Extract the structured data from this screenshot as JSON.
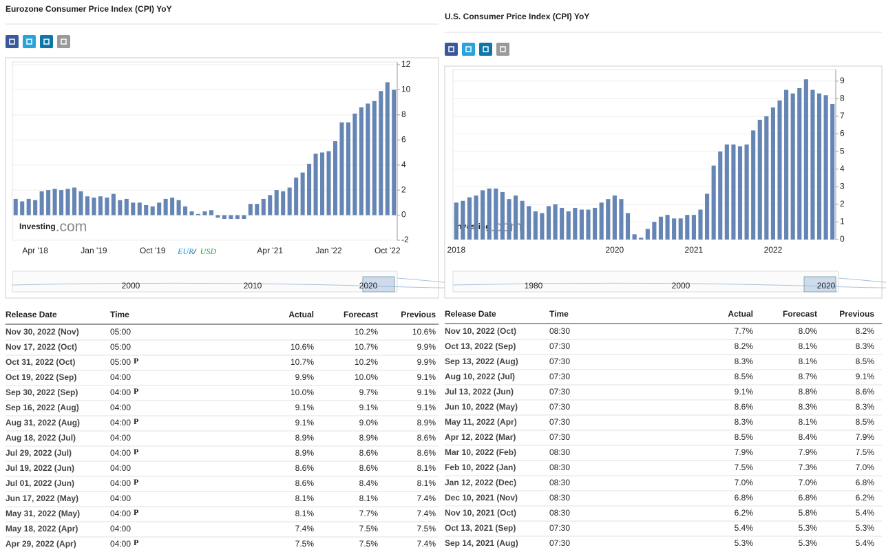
{
  "panels": [
    {
      "title": "Eurozone Consumer Price Index (CPI) YoY",
      "chart": {
        "type": "bar",
        "color": "#6585b4",
        "categories": [
          null,
          null,
          null,
          "Apr '18",
          null,
          null,
          null,
          null,
          null,
          null,
          null,
          null,
          "Jan '19",
          null,
          null,
          null,
          null,
          null,
          null,
          null,
          null,
          "Oct '19",
          null,
          null,
          null,
          null,
          null,
          null,
          null,
          null,
          null,
          null,
          null,
          null,
          null,
          null,
          null,
          null,
          null,
          "Apr '21",
          null,
          null,
          null,
          null,
          null,
          null,
          null,
          null,
          "Jan '22",
          null,
          null,
          null,
          null,
          null,
          null,
          null,
          null,
          "Oct '22",
          null
        ],
        "values": [
          1.3,
          1.1,
          1.3,
          1.2,
          1.9,
          2.0,
          2.1,
          2.0,
          2.1,
          2.2,
          1.9,
          1.5,
          1.4,
          1.5,
          1.4,
          1.7,
          1.2,
          1.3,
          1.0,
          1.0,
          0.8,
          0.7,
          1.0,
          1.3,
          1.4,
          1.2,
          0.7,
          0.3,
          0.1,
          0.3,
          0.4,
          -0.2,
          -0.3,
          -0.3,
          -0.3,
          -0.3,
          0.9,
          0.9,
          1.3,
          1.6,
          2.0,
          1.9,
          2.2,
          3.0,
          3.4,
          4.1,
          4.9,
          5.0,
          5.1,
          5.9,
          7.4,
          7.4,
          8.1,
          8.6,
          8.9,
          9.1,
          9.9,
          10.6,
          10.0
        ],
        "ylim": [
          -2,
          12
        ],
        "yticks": [
          -2,
          0,
          2,
          4,
          6,
          8,
          10,
          12
        ],
        "grid": true,
        "navigator_ticks": [
          2000,
          2010,
          2020
        ],
        "watermark": [
          "Investing",
          ".com"
        ]
      },
      "table": {
        "columns": [
          "Release Date",
          "Time",
          "Actual",
          "Forecast",
          "Previous"
        ],
        "preliminary_mark": "P",
        "rows": [
          {
            "date": "Nov 30, 2022 (Nov)",
            "time": "05:00",
            "actual": null,
            "forecast": "10.2%",
            "previous": "10.6%",
            "previous_color": "#1e9a1e"
          },
          {
            "date": "Nov 17, 2022 (Oct)",
            "time": "05:00",
            "actual": "10.6%",
            "forecast": "10.7%",
            "previous": "9.9%",
            "actual_color": "#e02424"
          },
          {
            "date": "Oct 31, 2022 (Oct)",
            "time": "05:00",
            "preliminary": true,
            "actual": "10.7%",
            "forecast": "10.2%",
            "previous": "9.9%",
            "actual_color": "#1e9a1e"
          },
          {
            "date": "Oct 19, 2022 (Sep)",
            "time": "04:00",
            "actual": "9.9%",
            "forecast": "10.0%",
            "previous": "9.1%",
            "actual_color": "#e02424"
          },
          {
            "date": "Sep 30, 2022 (Sep)",
            "time": "04:00",
            "preliminary": true,
            "actual": "10.0%",
            "forecast": "9.7%",
            "previous": "9.1%",
            "actual_color": "#1e9a1e"
          },
          {
            "date": "Sep 16, 2022 (Aug)",
            "time": "04:00",
            "actual": "9.1%",
            "forecast": "9.1%",
            "previous": "9.1%"
          },
          {
            "date": "Aug 31, 2022 (Aug)",
            "time": "04:00",
            "preliminary": true,
            "actual": "9.1%",
            "forecast": "9.0%",
            "previous": "8.9%",
            "actual_color": "#1e9a1e"
          },
          {
            "date": "Aug 18, 2022 (Jul)",
            "time": "04:00",
            "actual": "8.9%",
            "forecast": "8.9%",
            "previous": "8.6%"
          },
          {
            "date": "Jul 29, 2022 (Jul)",
            "time": "04:00",
            "preliminary": true,
            "actual": "8.9%",
            "forecast": "8.6%",
            "previous": "8.6%",
            "actual_color": "#1e9a1e"
          },
          {
            "date": "Jul 19, 2022 (Jun)",
            "time": "04:00",
            "actual": "8.6%",
            "forecast": "8.6%",
            "previous": "8.1%"
          },
          {
            "date": "Jul 01, 2022 (Jun)",
            "time": "04:00",
            "preliminary": true,
            "actual": "8.6%",
            "forecast": "8.4%",
            "previous": "8.1%",
            "actual_color": "#1e9a1e"
          },
          {
            "date": "Jun 17, 2022 (May)",
            "time": "04:00",
            "actual": "8.1%",
            "forecast": "8.1%",
            "previous": "7.4%",
            "previous_color": "#e02424"
          },
          {
            "date": "May 31, 2022 (May)",
            "time": "04:00",
            "preliminary": true,
            "actual": "8.1%",
            "forecast": "7.7%",
            "previous": "7.4%",
            "actual_color": "#1e9a1e"
          },
          {
            "date": "May 18, 2022 (Apr)",
            "time": "04:00",
            "actual": "7.4%",
            "forecast": "7.5%",
            "previous": "7.5%",
            "actual_color": "#e02424"
          },
          {
            "date": "Apr 29, 2022 (Apr)",
            "time": "04:00",
            "preliminary": true,
            "actual": "7.5%",
            "forecast": "7.5%",
            "previous": "7.4%"
          }
        ]
      }
    },
    {
      "title": "U.S. Consumer Price Index (CPI) YoY",
      "chart": {
        "type": "bar",
        "color": "#6585b4",
        "categories": [
          "2018",
          null,
          null,
          null,
          null,
          null,
          null,
          null,
          null,
          null,
          null,
          null,
          null,
          null,
          null,
          null,
          null,
          null,
          null,
          null,
          null,
          null,
          null,
          null,
          "2020",
          null,
          null,
          null,
          null,
          null,
          null,
          null,
          null,
          null,
          null,
          null,
          "2021",
          null,
          null,
          null,
          null,
          null,
          null,
          null,
          null,
          null,
          null,
          null,
          "2022",
          null,
          null,
          null,
          null,
          null,
          null,
          null,
          null,
          null
        ],
        "values": [
          2.1,
          2.2,
          2.4,
          2.5,
          2.8,
          2.9,
          2.9,
          2.7,
          2.3,
          2.5,
          2.2,
          1.9,
          1.6,
          1.5,
          1.9,
          2.0,
          1.8,
          1.6,
          1.8,
          1.7,
          1.7,
          1.8,
          2.1,
          2.3,
          2.5,
          2.3,
          1.5,
          0.3,
          0.1,
          0.6,
          1.0,
          1.3,
          1.4,
          1.2,
          1.2,
          1.4,
          1.4,
          1.7,
          2.6,
          4.2,
          5.0,
          5.4,
          5.4,
          5.3,
          5.4,
          6.2,
          6.8,
          7.0,
          7.5,
          7.9,
          8.5,
          8.3,
          8.6,
          9.1,
          8.5,
          8.3,
          8.2,
          7.7
        ],
        "ylim": [
          0,
          9.5
        ],
        "yticks": [
          0,
          1,
          2,
          3,
          4,
          5,
          6,
          7,
          8,
          9
        ],
        "grid": true,
        "navigator_ticks": [
          1980,
          2000,
          2020
        ],
        "watermark": [
          "Investing",
          ".com"
        ]
      },
      "table": {
        "columns": [
          "Release Date",
          "Time",
          "Actual",
          "Forecast",
          "Previous"
        ],
        "rows": [
          {
            "date": "Nov 10, 2022 (Oct)",
            "time": "08:30",
            "actual": "7.7%",
            "forecast": "8.0%",
            "previous": "8.2%",
            "actual_color": "#e02424"
          },
          {
            "date": "Oct 13, 2022 (Sep)",
            "time": "07:30",
            "actual": "8.2%",
            "forecast": "8.1%",
            "previous": "8.3%",
            "actual_color": "#1e9a1e"
          },
          {
            "date": "Sep 13, 2022 (Aug)",
            "time": "07:30",
            "actual": "8.3%",
            "forecast": "8.1%",
            "previous": "8.5%",
            "actual_color": "#1e9a1e"
          },
          {
            "date": "Aug 10, 2022 (Jul)",
            "time": "07:30",
            "actual": "8.5%",
            "forecast": "8.7%",
            "previous": "9.1%",
            "actual_color": "#e02424"
          },
          {
            "date": "Jul 13, 2022 (Jun)",
            "time": "07:30",
            "actual": "9.1%",
            "forecast": "8.8%",
            "previous": "8.6%",
            "actual_color": "#1e9a1e"
          },
          {
            "date": "Jun 10, 2022 (May)",
            "time": "07:30",
            "actual": "8.6%",
            "forecast": "8.3%",
            "previous": "8.3%",
            "actual_color": "#1e9a1e"
          },
          {
            "date": "May 11, 2022 (Apr)",
            "time": "07:30",
            "actual": "8.3%",
            "forecast": "8.1%",
            "previous": "8.5%",
            "actual_color": "#1e9a1e"
          },
          {
            "date": "Apr 12, 2022 (Mar)",
            "time": "07:30",
            "actual": "8.5%",
            "forecast": "8.4%",
            "previous": "7.9%",
            "actual_color": "#1e9a1e"
          },
          {
            "date": "Mar 10, 2022 (Feb)",
            "time": "08:30",
            "actual": "7.9%",
            "forecast": "7.9%",
            "previous": "7.5%"
          },
          {
            "date": "Feb 10, 2022 (Jan)",
            "time": "08:30",
            "actual": "7.5%",
            "forecast": "7.3%",
            "previous": "7.0%",
            "actual_color": "#1e9a1e"
          },
          {
            "date": "Jan 12, 2022 (Dec)",
            "time": "08:30",
            "actual": "7.0%",
            "forecast": "7.0%",
            "previous": "6.8%"
          },
          {
            "date": "Dec 10, 2021 (Nov)",
            "time": "08:30",
            "actual": "6.8%",
            "forecast": "6.8%",
            "previous": "6.2%"
          },
          {
            "date": "Nov 10, 2021 (Oct)",
            "time": "08:30",
            "actual": "6.2%",
            "forecast": "5.8%",
            "previous": "5.4%",
            "actual_color": "#1e9a1e"
          },
          {
            "date": "Oct 13, 2021 (Sep)",
            "time": "07:30",
            "actual": "5.4%",
            "forecast": "5.3%",
            "previous": "5.3%",
            "actual_color": "#1e9a1e"
          },
          {
            "date": "Sep 14, 2021 (Aug)",
            "time": "07:30",
            "actual": "5.3%",
            "forecast": "5.3%",
            "previous": "5.4%"
          }
        ]
      }
    }
  ],
  "overlay": {
    "parts": [
      "EUR",
      "/",
      "USD"
    ],
    "colors": [
      "#0f9be3",
      "#111111",
      "#1fae47"
    ]
  }
}
